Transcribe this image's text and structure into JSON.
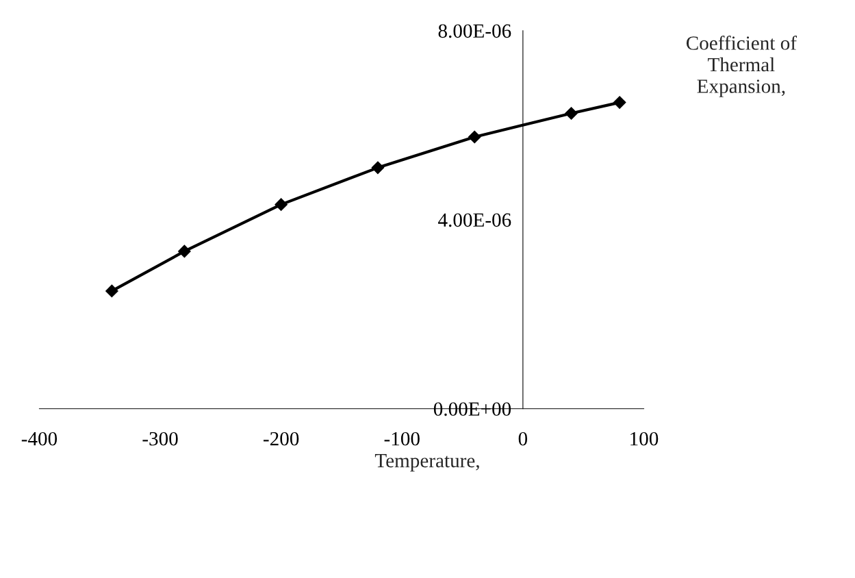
{
  "chart_data": {
    "type": "line",
    "xlabel": "Temperature,",
    "ylabel": "Coefficient of\nThermal\nExpansion,",
    "x": [
      -340,
      -280,
      -200,
      -120,
      -40,
      40,
      80
    ],
    "series": [
      {
        "color": "#000000",
        "values": [
          2.49e-06,
          3.33e-06,
          4.32e-06,
          5.1e-06,
          5.75e-06,
          6.25e-06,
          6.48e-06
        ]
      }
    ],
    "xlim": [
      -400,
      100
    ],
    "xticks": [
      -400,
      -300,
      -200,
      -100,
      0,
      100
    ],
    "ylim": [
      0,
      8e-06
    ],
    "yticks": [
      {
        "value": 0,
        "label": "0.00E+00"
      },
      {
        "value": 4e-06,
        "label": "4.00E-06"
      },
      {
        "value": 8e-06,
        "label": "8.00E-06"
      }
    ],
    "marker": "diamond",
    "line_style": "solid",
    "grid": false,
    "legend": false
  }
}
